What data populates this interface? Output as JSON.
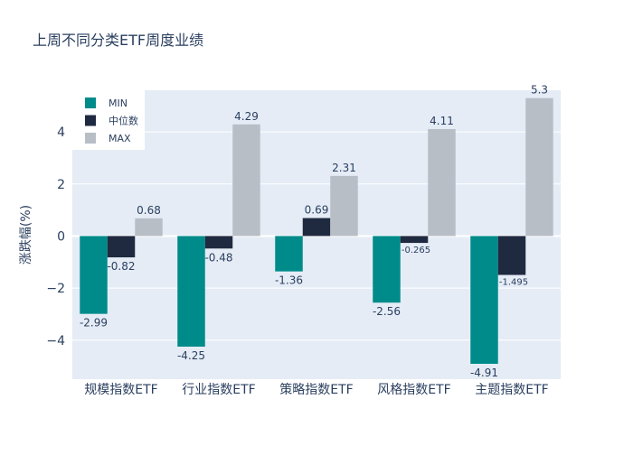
{
  "chart_data": {
    "type": "bar",
    "title": "上周不同分类ETF周度业绩",
    "xlabel": "",
    "ylabel": "涨跌幅(%)",
    "categories": [
      "规模指数ETF",
      "行业指数ETF",
      "策略指数ETF",
      "风格指数ETF",
      "主题指数ETF"
    ],
    "series": [
      {
        "name": "MIN",
        "color": "#008B8B",
        "values": [
          -2.99,
          -4.25,
          -1.36,
          -2.56,
          -4.91
        ],
        "labels": [
          "-2.99",
          "-4.25",
          "-1.36",
          "-2.56",
          "-4.91"
        ]
      },
      {
        "name": "中位数",
        "color": "#1F2A40",
        "values": [
          -0.82,
          -0.48,
          0.69,
          -0.265,
          -1.495
        ],
        "labels": [
          "-0.82",
          "-0.48",
          "0.69",
          "-0.265",
          "-1.495"
        ]
      },
      {
        "name": "MAX",
        "color": "#B8BEC6",
        "values": [
          0.68,
          4.29,
          2.31,
          4.11,
          5.3
        ],
        "labels": [
          "0.68",
          "4.29",
          "2.31",
          "4.11",
          "5.3"
        ]
      }
    ],
    "ylim": [
      -5.5,
      5.6
    ],
    "yticks": [
      -4,
      -2,
      0,
      2,
      4
    ],
    "ytick_labels": [
      "−4",
      "−2",
      "0",
      "2",
      "4"
    ],
    "grid": true,
    "legend": "top-left",
    "plot_bg": "#E5ECF6"
  }
}
